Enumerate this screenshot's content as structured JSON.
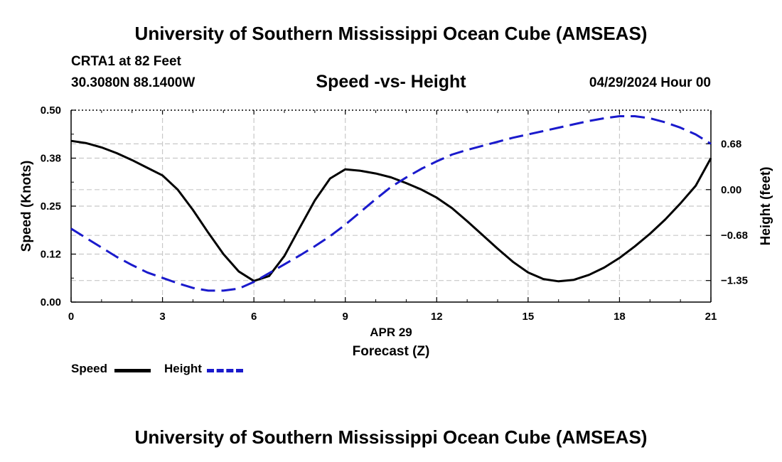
{
  "header": {
    "title": "University of Southern Mississippi Ocean Cube (AMSEAS)",
    "station": "CRTA1 at 82 Feet",
    "coords": "30.3080N  88.1400W",
    "chart_title": "Speed -vs- Height",
    "date": "04/29/2024 Hour 00"
  },
  "footer": {
    "title": "University of Southern Mississippi Ocean Cube (AMSEAS)"
  },
  "legend": {
    "speed_label": "Speed",
    "height_label": "Height"
  },
  "colors": {
    "speed": "#000000",
    "height": "#1a1acc",
    "grid": "#c8c8c8"
  },
  "chart_data": {
    "type": "line",
    "title": "Speed -vs- Height",
    "xlabel": "Forecast (Z)",
    "xsublabel": "APR 29",
    "ylabel": "Speed (Knots)",
    "y2label": "Height (feet)",
    "xlim": [
      0,
      21
    ],
    "ylim": [
      0,
      0.5
    ],
    "y2lim": [
      -1.67,
      1.18
    ],
    "xticks": [
      0,
      3,
      6,
      9,
      12,
      15,
      18,
      21
    ],
    "yticks": [
      0.0,
      0.125,
      0.25,
      0.375,
      0.5
    ],
    "ytick_labels": [
      "0.00",
      "0.12",
      "0.25",
      "0.38",
      "0.50"
    ],
    "y2ticks": [
      -1.35,
      -0.68,
      0.0,
      0.68
    ],
    "y2tick_labels": [
      "−1.35",
      "−0.68",
      "0.00",
      "0.68"
    ],
    "grid": true,
    "series": [
      {
        "name": "Speed",
        "axis": "left",
        "style": "solid",
        "x": [
          0,
          0.5,
          1,
          1.5,
          2,
          2.5,
          3,
          3.5,
          4,
          4.5,
          5,
          5.5,
          6,
          6.5,
          7,
          7.5,
          8,
          8.5,
          9,
          9.5,
          10,
          10.5,
          11,
          11.5,
          12,
          12.5,
          13,
          13.5,
          14,
          14.5,
          15,
          15.5,
          16,
          16.5,
          17,
          17.5,
          18,
          18.5,
          19,
          19.5,
          20,
          20.5,
          21
        ],
        "values": [
          0.42,
          0.414,
          0.403,
          0.388,
          0.37,
          0.35,
          0.33,
          0.293,
          0.24,
          0.181,
          0.125,
          0.08,
          0.055,
          0.068,
          0.12,
          0.193,
          0.265,
          0.322,
          0.346,
          0.342,
          0.335,
          0.325,
          0.31,
          0.293,
          0.272,
          0.245,
          0.211,
          0.175,
          0.139,
          0.105,
          0.077,
          0.06,
          0.054,
          0.058,
          0.071,
          0.09,
          0.115,
          0.145,
          0.178,
          0.215,
          0.257,
          0.303,
          0.375
        ]
      },
      {
        "name": "Height",
        "axis": "right",
        "style": "dashed",
        "x": [
          0,
          0.5,
          1,
          1.5,
          2,
          2.5,
          3,
          3.5,
          4,
          4.5,
          5,
          5.5,
          6,
          6.5,
          7,
          7.5,
          8,
          8.5,
          9,
          9.5,
          10,
          10.5,
          11,
          11.5,
          12,
          12.5,
          13,
          13.5,
          14,
          14.5,
          15,
          15.5,
          16,
          16.5,
          17,
          17.5,
          18,
          18.5,
          19,
          19.5,
          20,
          20.5,
          21
        ],
        "values": [
          -0.58,
          -0.72,
          -0.86,
          -1.0,
          -1.12,
          -1.23,
          -1.31,
          -1.39,
          -1.46,
          -1.5,
          -1.5,
          -1.47,
          -1.37,
          -1.24,
          -1.11,
          -0.98,
          -0.84,
          -0.69,
          -0.52,
          -0.33,
          -0.14,
          0.04,
          0.18,
          0.31,
          0.42,
          0.52,
          0.59,
          0.65,
          0.71,
          0.77,
          0.82,
          0.87,
          0.92,
          0.97,
          1.02,
          1.06,
          1.09,
          1.09,
          1.06,
          1.0,
          0.92,
          0.82,
          0.68
        ]
      }
    ]
  }
}
